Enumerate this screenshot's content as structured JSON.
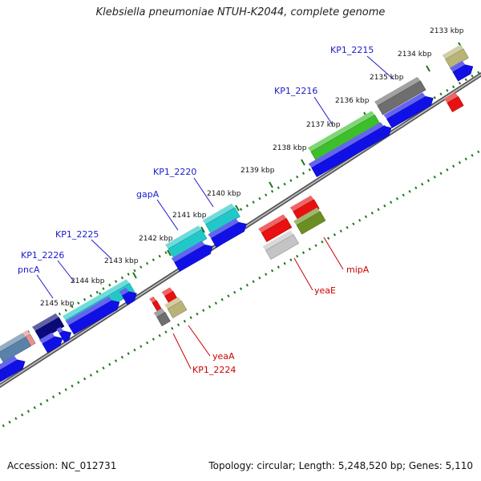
{
  "title": "Klebsiella pneumoniae NTUH-K2044, complete genome",
  "footer": {
    "accession": "Accession: NC_012731",
    "info": "Topology: circular; Length: 5,248,520 bp; Genes: 5,110"
  },
  "ticks": [
    "2133 kbp",
    "2134 kbp",
    "2135 kbp",
    "2136 kbp",
    "2137 kbp",
    "2138 kbp",
    "2139 kbp",
    "2140 kbp",
    "2141 kbp",
    "2142 kbp",
    "2143 kbp",
    "2144 kbp",
    "2145 kbp"
  ],
  "labels_top": [
    "KP1_2215",
    "KP1_2216",
    "KP1_2220",
    "gapA",
    "KP1_2225",
    "KP1_2226",
    "pncA"
  ],
  "labels_bottom": [
    "mipA",
    "yeaE",
    "yeaA",
    "KP1_2224"
  ],
  "colors": {
    "blue": "#1010e6",
    "navy": "#0a0a78",
    "cyan": "#22c8c8",
    "green": "#3cbf2a",
    "olive": "#6b8e23",
    "khaki": "#b8b478",
    "gray": "#6e6e6e",
    "light_gray": "#c4c4c4",
    "red": "#e81010",
    "pink": "#e89090",
    "steel": "#5a82a8",
    "backbone": "#808080",
    "dots": "#1a7a1a"
  }
}
